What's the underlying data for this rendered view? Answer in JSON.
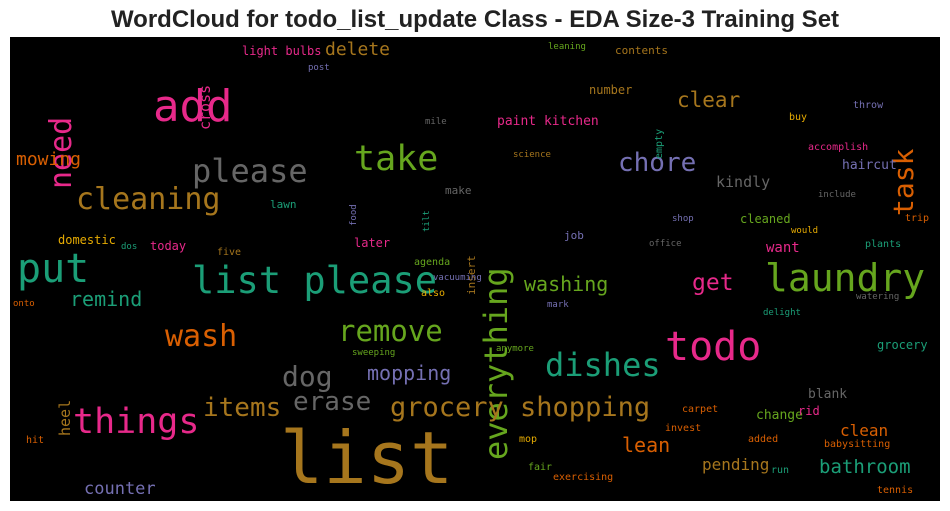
{
  "title": "WordCloud for todo_list_update Class - EDA Size-3 Training Set",
  "chart_data": {
    "type": "wordcloud",
    "title": "WordCloud for todo_list_update Class - EDA Size-3 Training Set",
    "background": "#000000",
    "colormap": [
      "#1b9e77",
      "#d95f02",
      "#7570b3",
      "#e7298a",
      "#66a61e",
      "#e6ab02",
      "#a6761d",
      "#666666"
    ],
    "words": [
      {
        "text": "list",
        "weight": 1.0,
        "color": "#a6761d",
        "orientation": "horizontal"
      },
      {
        "text": "add",
        "weight": 0.66,
        "color": "#e7298a",
        "orientation": "horizontal"
      },
      {
        "text": "todo",
        "weight": 0.59,
        "color": "#e7298a",
        "orientation": "horizontal"
      },
      {
        "text": "put",
        "weight": 0.59,
        "color": "#1b9e77",
        "orientation": "horizontal"
      },
      {
        "text": "laundry",
        "weight": 0.56,
        "color": "#66a61e",
        "orientation": "horizontal"
      },
      {
        "text": "list please",
        "weight": 0.55,
        "color": "#1b9e77",
        "orientation": "horizontal"
      },
      {
        "text": "things",
        "weight": 0.52,
        "color": "#e7298a",
        "orientation": "horizontal"
      },
      {
        "text": "take",
        "weight": 0.52,
        "color": "#66a61e",
        "orientation": "horizontal"
      },
      {
        "text": "everything",
        "weight": 0.48,
        "color": "#66a61e",
        "orientation": "vertical"
      },
      {
        "text": "please",
        "weight": 0.48,
        "color": "#666666",
        "orientation": "horizontal"
      },
      {
        "text": "dishes",
        "weight": 0.48,
        "color": "#1b9e77",
        "orientation": "horizontal"
      },
      {
        "text": "need",
        "weight": 0.45,
        "color": "#e7298a",
        "orientation": "vertical"
      },
      {
        "text": "cleaning",
        "weight": 0.45,
        "color": "#a6761d",
        "orientation": "horizontal"
      },
      {
        "text": "wash",
        "weight": 0.45,
        "color": "#d95f02",
        "orientation": "horizontal"
      },
      {
        "text": "remove",
        "weight": 0.42,
        "color": "#66a61e",
        "orientation": "horizontal"
      },
      {
        "text": "task",
        "weight": 0.42,
        "color": "#d95f02",
        "orientation": "vertical"
      },
      {
        "text": "dog",
        "weight": 0.42,
        "color": "#666666",
        "orientation": "horizontal"
      },
      {
        "text": "grocery shopping",
        "weight": 0.4,
        "color": "#a6761d",
        "orientation": "horizontal"
      },
      {
        "text": "chore",
        "weight": 0.38,
        "color": "#7570b3",
        "orientation": "horizontal"
      },
      {
        "text": "items",
        "weight": 0.38,
        "color": "#a6761d",
        "orientation": "horizontal"
      },
      {
        "text": "erase",
        "weight": 0.38,
        "color": "#666666",
        "orientation": "horizontal"
      },
      {
        "text": "get",
        "weight": 0.34,
        "color": "#e7298a",
        "orientation": "horizontal"
      },
      {
        "text": "clear",
        "weight": 0.31,
        "color": "#a6761d",
        "orientation": "horizontal"
      },
      {
        "text": "remind",
        "weight": 0.3,
        "color": "#1b9e77",
        "orientation": "horizontal"
      },
      {
        "text": "washing",
        "weight": 0.3,
        "color": "#66a61e",
        "orientation": "horizontal"
      },
      {
        "text": "mopping",
        "weight": 0.3,
        "color": "#7570b3",
        "orientation": "horizontal"
      },
      {
        "text": "lean",
        "weight": 0.28,
        "color": "#d95f02",
        "orientation": "horizontal"
      },
      {
        "text": "bathroom",
        "weight": 0.28,
        "color": "#1b9e77",
        "orientation": "horizontal"
      },
      {
        "text": "delete",
        "weight": 0.27,
        "color": "#a6761d",
        "orientation": "horizontal"
      },
      {
        "text": "mowing",
        "weight": 0.27,
        "color": "#d95f02",
        "orientation": "horizontal"
      },
      {
        "text": "counter",
        "weight": 0.25,
        "color": "#7570b3",
        "orientation": "horizontal"
      },
      {
        "text": "pending",
        "weight": 0.24,
        "color": "#a6761d",
        "orientation": "horizontal"
      },
      {
        "text": "clean",
        "weight": 0.24,
        "color": "#d95f02",
        "orientation": "horizontal"
      },
      {
        "text": "kindly",
        "weight": 0.23,
        "color": "#666666",
        "orientation": "horizontal"
      },
      {
        "text": "want",
        "weight": 0.22,
        "color": "#e7298a",
        "orientation": "horizontal"
      },
      {
        "text": "cross",
        "weight": 0.22,
        "color": "#e7298a",
        "orientation": "vertical"
      },
      {
        "text": "heel",
        "weight": 0.22,
        "color": "#a6761d",
        "orientation": "vertical"
      },
      {
        "text": "haircut",
        "weight": 0.2,
        "color": "#7570b3",
        "orientation": "horizontal"
      },
      {
        "text": "paint kitchen",
        "weight": 0.2,
        "color": "#e7298a",
        "orientation": "horizontal"
      },
      {
        "text": "blank",
        "weight": 0.2,
        "color": "#666666",
        "orientation": "horizontal"
      },
      {
        "text": "change",
        "weight": 0.2,
        "color": "#66a61e",
        "orientation": "horizontal"
      },
      {
        "text": "light bulbs",
        "weight": 0.19,
        "color": "#e7298a",
        "orientation": "horizontal"
      },
      {
        "text": "domestic",
        "weight": 0.19,
        "color": "#e6ab02",
        "orientation": "horizontal"
      },
      {
        "text": "number",
        "weight": 0.19,
        "color": "#a6761d",
        "orientation": "horizontal"
      },
      {
        "text": "today",
        "weight": 0.19,
        "color": "#e7298a",
        "orientation": "horizontal"
      },
      {
        "text": "later",
        "weight": 0.19,
        "color": "#e7298a",
        "orientation": "horizontal"
      },
      {
        "text": "rid",
        "weight": 0.19,
        "color": "#e7298a",
        "orientation": "horizontal"
      },
      {
        "text": "grocery",
        "weight": 0.18,
        "color": "#1b9e77",
        "orientation": "horizontal"
      },
      {
        "text": "cleaned",
        "weight": 0.18,
        "color": "#66a61e",
        "orientation": "horizontal"
      },
      {
        "text": "contents",
        "weight": 0.18,
        "color": "#a6761d",
        "orientation": "horizontal"
      },
      {
        "text": "lawn",
        "weight": 0.17,
        "color": "#1b9e77",
        "orientation": "horizontal"
      },
      {
        "text": "job",
        "weight": 0.17,
        "color": "#7570b3",
        "orientation": "horizontal"
      },
      {
        "text": "make",
        "weight": 0.17,
        "color": "#666666",
        "orientation": "horizontal"
      },
      {
        "text": "insert",
        "weight": 0.17,
        "color": "#a6761d",
        "orientation": "vertical"
      },
      {
        "text": "empty",
        "weight": 0.16,
        "color": "#1b9e77",
        "orientation": "vertical"
      },
      {
        "text": "accomplish",
        "weight": 0.16,
        "color": "#e7298a",
        "orientation": "horizontal"
      },
      {
        "text": "throw",
        "weight": 0.16,
        "color": "#7570b3",
        "orientation": "horizontal"
      },
      {
        "text": "plants",
        "weight": 0.16,
        "color": "#1b9e77",
        "orientation": "horizontal"
      },
      {
        "text": "also",
        "weight": 0.16,
        "color": "#e6ab02",
        "orientation": "horizontal"
      },
      {
        "text": "agenda",
        "weight": 0.16,
        "color": "#66a61e",
        "orientation": "horizontal"
      },
      {
        "text": "trip",
        "weight": 0.15,
        "color": "#d95f02",
        "orientation": "horizontal"
      },
      {
        "text": "buy",
        "weight": 0.15,
        "color": "#e6ab02",
        "orientation": "horizontal"
      },
      {
        "text": "carpet",
        "weight": 0.15,
        "color": "#d95f02",
        "orientation": "horizontal"
      },
      {
        "text": "added",
        "weight": 0.15,
        "color": "#d95f02",
        "orientation": "horizontal"
      },
      {
        "text": "babysitting",
        "weight": 0.15,
        "color": "#d95f02",
        "orientation": "horizontal"
      },
      {
        "text": "exercising",
        "weight": 0.15,
        "color": "#d95f02",
        "orientation": "horizontal"
      },
      {
        "text": "tennis",
        "weight": 0.14,
        "color": "#d95f02",
        "orientation": "horizontal"
      },
      {
        "text": "mop",
        "weight": 0.14,
        "color": "#e6ab02",
        "orientation": "horizontal"
      },
      {
        "text": "five",
        "weight": 0.14,
        "color": "#a6761d",
        "orientation": "horizontal"
      },
      {
        "text": "hit",
        "weight": 0.14,
        "color": "#d95f02",
        "orientation": "horizontal"
      },
      {
        "text": "invest",
        "weight": 0.14,
        "color": "#d95f02",
        "orientation": "horizontal"
      },
      {
        "text": "fair",
        "weight": 0.14,
        "color": "#66a61e",
        "orientation": "horizontal"
      },
      {
        "text": "run",
        "weight": 0.14,
        "color": "#1b9e77",
        "orientation": "horizontal"
      },
      {
        "text": "sweeping",
        "weight": 0.13,
        "color": "#66a61e",
        "orientation": "horizontal"
      },
      {
        "text": "anymore",
        "weight": 0.13,
        "color": "#66a61e",
        "orientation": "horizontal"
      },
      {
        "text": "delight",
        "weight": 0.13,
        "color": "#1b9e77",
        "orientation": "horizontal"
      },
      {
        "text": "watering",
        "weight": 0.13,
        "color": "#666666",
        "orientation": "horizontal"
      },
      {
        "text": "mark",
        "weight": 0.13,
        "color": "#7570b3",
        "orientation": "horizontal"
      },
      {
        "text": "vacuuming",
        "weight": 0.13,
        "color": "#7570b3",
        "orientation": "horizontal"
      },
      {
        "text": "shop",
        "weight": 0.13,
        "color": "#7570b3",
        "orientation": "horizontal"
      },
      {
        "text": "would",
        "weight": 0.13,
        "color": "#e6ab02",
        "orientation": "horizontal"
      },
      {
        "text": "office",
        "weight": 0.13,
        "color": "#666666",
        "orientation": "horizontal"
      },
      {
        "text": "include",
        "weight": 0.12,
        "color": "#666666",
        "orientation": "horizontal"
      },
      {
        "text": "science",
        "weight": 0.12,
        "color": "#a6761d",
        "orientation": "horizontal"
      },
      {
        "text": "mile",
        "weight": 0.12,
        "color": "#666666",
        "orientation": "horizontal"
      },
      {
        "text": "leaning",
        "weight": 0.12,
        "color": "#66a61e",
        "orientation": "horizontal"
      },
      {
        "text": "post",
        "weight": 0.12,
        "color": "#7570b3",
        "orientation": "horizontal"
      },
      {
        "text": "dos",
        "weight": 0.12,
        "color": "#1b9e77",
        "orientation": "horizontal"
      },
      {
        "text": "onto",
        "weight": 0.12,
        "color": "#d95f02",
        "orientation": "horizontal"
      },
      {
        "text": "food",
        "weight": 0.12,
        "color": "#7570b3",
        "orientation": "vertical"
      },
      {
        "text": "tilt",
        "weight": 0.12,
        "color": "#1b9e77",
        "orientation": "vertical"
      }
    ]
  }
}
